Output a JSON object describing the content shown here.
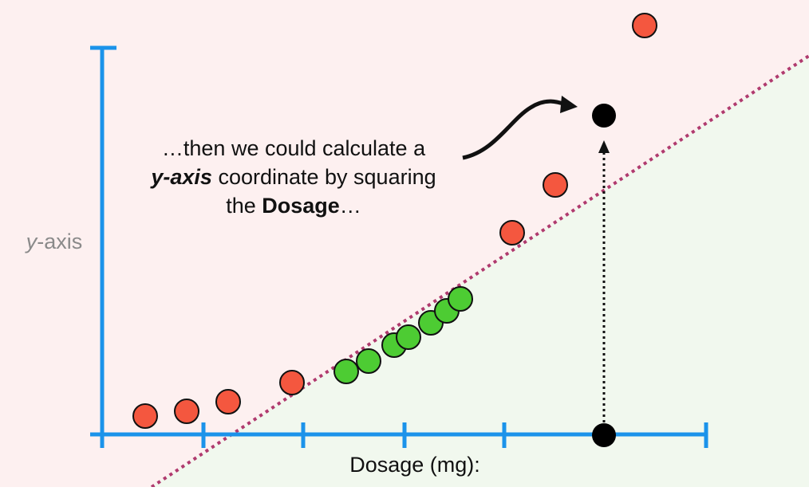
{
  "annotation": {
    "lines": [
      [
        {
          "text": "…then we could calculate a",
          "style": "normal"
        }
      ],
      [
        {
          "text": "y-axis",
          "style": "bold-italic"
        },
        {
          "text": " coordinate by squaring",
          "style": "normal"
        }
      ],
      [
        {
          "text": "the ",
          "style": "normal"
        },
        {
          "text": "Dosage",
          "style": "bold"
        },
        {
          "text": "…",
          "style": "normal"
        }
      ]
    ]
  },
  "y_axis_label": {
    "italic": "y",
    "rest": "-axis"
  },
  "x_axis_label": "Dosage (mg):"
}
